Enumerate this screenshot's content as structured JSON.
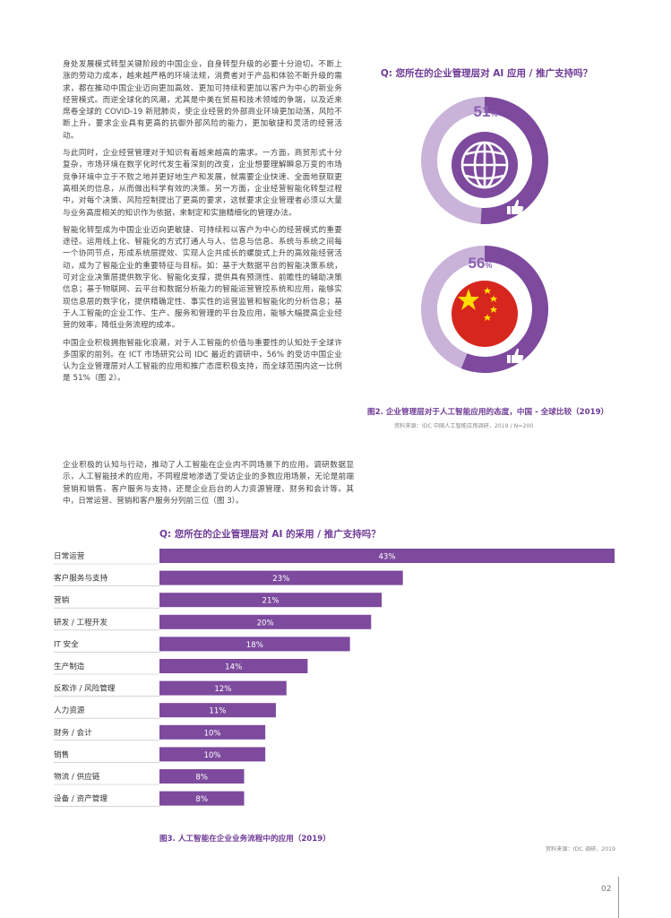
{
  "left_column": {
    "paragraphs": [
      "身处发展模式转型关键阶段的中国企业，自身转型升级的必要十分迫切。不断上涨的劳动力成本，越来越严格的环境法规，消费者对于产品和体验不断升级的需求，都在推动中国企业迈向更加高效、更加可持续和更加以客户为中心的新业务经营模式。而逆全球化的风潮，尤其是中美在贸易和技术领域的争端，以及近来席卷全球的 COVID-19 新冠肺炎，使企业经营的外部商业环境更加动荡，风险不断上升，要求企业具有更高的抗御外部风险的能力，更加敏捷和灵活的经营活动。",
      "与此同时，企业经营管理对于知识有着越来越高的需求。一方面，商贸形式十分复杂，市场环境在数字化时代发生着深刻的改变，企业想要理解瞬息万变的市场竞争环境中立于不败之地并更好地生产和发展，就需要企业快速、全面地获取更高相关的信息，从而做出科学有效的决策。另一方面，企业经营智能化转型过程中，对每个决策、风险控制提出了更高的要求，这就要求企业管理者必须以大量与业务高度相关的知识作为依据，来制定和实施精细化的管理办法。",
      "智能化转型成为中国企业迈向更敏捷、可持续和以客户为中心的经营模式的重要途径。运用线上化、智能化的方式打通人与人、信息与信息、系统与系统之间每一个协同节点，形成系统层提效、实现人企共成长的螺旋式上升的高效能经营活动，成为了智能企业的重要特征与目标。如：基于大数据平台的智能决策系统，可对企业决策层提供数字化、智能化支撑，提供具有预测性、前瞻性的辅助决策信息；基于物联网、云平台和数据分析能力的智能运营管控系统和应用，能够实现信息层的数字化，提供精确定性、事实性的运营监管和智能化的分析信息；基于人工智能的企业工作、生产、服务和管理的平台及应用，能够大幅提高企业经营的效率，降低业务流程的成本。",
      "中国企业积极拥抱智能化浪潮，对于人工智能的价值与重要性的认知处于全球许多国家的前列。在 ICT 市场研究公司 IDC 最近的调研中，56% 的受访中国企业认为企业管理层对人工智能的应用和推广态度积极支持，而全球范围内这一比例是 51%（图 2）。"
    ],
    "lower_paragraph": "企业积极的认知与行动，推动了人工智能在企业内不同场景下的应用。调研数据显示，人工智能技术的应用，不同程度地渗透了受访企业的多数应用场景，无论是前端营销和销售、客户服务与支持，还是企业后台的人力资源管理、财务和会计等。其中，日常运营、营销和客户服务分列前三位（图 3）。"
  },
  "figure2": {
    "question": "Q: 您所在的企业管理层对 AI 应用 / 推广支持吗？",
    "global": {
      "value": "51",
      "unit": "%",
      "fraction": 0.51
    },
    "china": {
      "value": "56",
      "unit": "%",
      "fraction": 0.56
    },
    "caption": "图2. 企业管理层对于人工智能应用的态度，中国 - 全球比较（2019）",
    "source": "资料来源：IDC 中国人工智能应用调研，2019 / N=200"
  },
  "chart_data": {
    "type": "bar",
    "orientation": "horizontal",
    "title": "Q: 您所在的企业管理层对 AI 的采用 / 推广支持吗？",
    "categories": [
      "日常运营",
      "客户服务与支持",
      "营销",
      "研发 / 工程开发",
      "IT 安全",
      "生产制造",
      "反欺诈 / 风险管理",
      "人力资源",
      "财务 / 会计",
      "销售",
      "物流 / 供应链",
      "设备 / 资产管理"
    ],
    "values": [
      43,
      23,
      21,
      20,
      18,
      14,
      12,
      11,
      10,
      10,
      8,
      8
    ],
    "value_labels": [
      "43%",
      "23%",
      "21%",
      "20%",
      "18%",
      "14%",
      "12%",
      "11%",
      "10%",
      "10%",
      "8%",
      "8%"
    ],
    "xlim": [
      0,
      43
    ],
    "color": "#7d4a9e",
    "caption": "图3. 人工智能在企业业务流程中的应用（2019）",
    "source": "资料来源：IDC 调研，2019"
  },
  "colors": {
    "accent": "#7d4a9e",
    "donut_track": "#c9b3d9",
    "china_red": "#d7261e",
    "china_star": "#ffde00"
  },
  "icons": [
    "globe-icon",
    "china-flag-icon",
    "thumbs-up-icon"
  ],
  "page_number": "02"
}
